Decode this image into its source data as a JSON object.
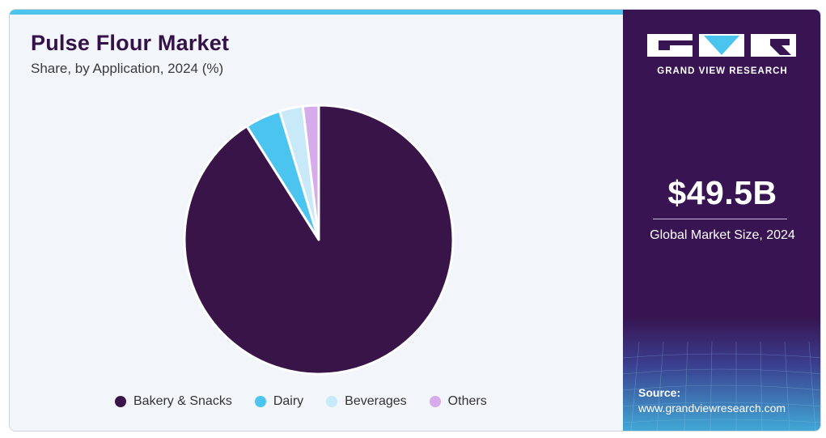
{
  "chart_data": {
    "type": "pie",
    "title": "Pulse Flour Market",
    "subtitle": "Share, by Application, 2024 (%)",
    "slices": [
      {
        "label": "Bakery & Snacks",
        "value": 91.0,
        "color": "#381448"
      },
      {
        "label": "Dairy",
        "value": 4.3,
        "color": "#4cc4f0"
      },
      {
        "label": "Beverages",
        "value": 2.8,
        "color": "#c7e9f8"
      },
      {
        "label": "Others",
        "value": 1.9,
        "color": "#d6abeb"
      }
    ],
    "legend_position": "bottom"
  },
  "brand": {
    "name": "GRAND VIEW RESEARCH"
  },
  "stats": {
    "market_size": "$49.5B",
    "market_size_label": "Global Market Size, 2024"
  },
  "source": {
    "label": "Source:",
    "url": "www.grandviewresearch.com"
  },
  "colors": {
    "panel_purple": "#381552",
    "accent_blue": "#4cc4f0",
    "background": "#f2f6fa",
    "title_color": "#35114a"
  }
}
